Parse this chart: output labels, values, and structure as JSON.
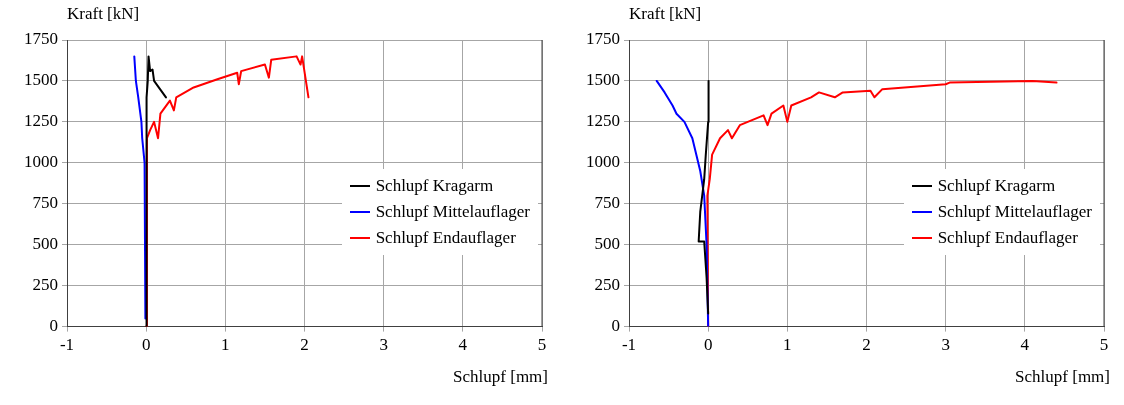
{
  "chart_data": [
    {
      "type": "line",
      "xlabel": "Schlupf [mm]",
      "ylabel": "Kraft [kN]",
      "xlim": [
        -1,
        5
      ],
      "ylim": [
        0,
        1750
      ],
      "xticks": [
        -1,
        0,
        1,
        2,
        3,
        4,
        5
      ],
      "yticks": [
        0,
        250,
        500,
        750,
        1000,
        1250,
        1500,
        1750
      ],
      "grid": true,
      "legend": "right",
      "marker": "none",
      "line_style": "solid",
      "series": [
        {
          "name": "Schlupf Kragarm",
          "color": "#000000",
          "x": [
            0,
            0.005,
            0.02,
            0.03,
            0.05,
            0.08,
            0.1,
            0.25
          ],
          "values": [
            0,
            1400,
            1500,
            1650,
            1560,
            1570,
            1500,
            1400
          ]
        },
        {
          "name": "Schlupf Mittelauflager",
          "color": "#0000ff",
          "x": [
            -0.01,
            -0.02,
            -0.05,
            -0.06,
            -0.1,
            -0.13,
            -0.15
          ],
          "values": [
            50,
            1000,
            1150,
            1250,
            1400,
            1500,
            1650
          ]
        },
        {
          "name": "Schlupf Endauflager",
          "color": "#ff0000",
          "x": [
            0,
            0.01,
            0.05,
            0.1,
            0.15,
            0.18,
            0.3,
            0.35,
            0.38,
            0.6,
            0.9,
            1.15,
            1.17,
            1.2,
            1.5,
            1.55,
            1.58,
            1.9,
            1.95,
            1.97,
            2.05
          ],
          "values": [
            0,
            1150,
            1200,
            1250,
            1150,
            1300,
            1380,
            1320,
            1400,
            1460,
            1510,
            1550,
            1480,
            1560,
            1600,
            1520,
            1630,
            1650,
            1600,
            1650,
            1400
          ]
        }
      ]
    },
    {
      "type": "line",
      "xlabel": "Schlupf [mm]",
      "ylabel": "Kraft [kN]",
      "xlim": [
        -1,
        5
      ],
      "ylim": [
        0,
        1750
      ],
      "xticks": [
        -1,
        0,
        1,
        2,
        3,
        4,
        5
      ],
      "yticks": [
        0,
        250,
        500,
        750,
        1000,
        1250,
        1500,
        1750
      ],
      "grid": true,
      "legend": "right",
      "marker": "none",
      "line_style": "solid",
      "series": [
        {
          "name": "Schlupf Kragarm",
          "color": "#000000",
          "x": [
            0,
            -0.02,
            -0.05,
            -0.12,
            -0.1,
            -0.05,
            -0.03,
            0,
            0.005
          ],
          "values": [
            80,
            300,
            520,
            520,
            700,
            900,
            1050,
            1250,
            1500
          ]
        },
        {
          "name": "Schlupf Mittelauflager",
          "color": "#0000ff",
          "x": [
            0,
            -0.02,
            -0.05,
            -0.1,
            -0.2,
            -0.3,
            -0.4,
            -0.45,
            -0.55,
            -0.65
          ],
          "values": [
            0,
            500,
            800,
            950,
            1150,
            1250,
            1300,
            1350,
            1430,
            1500
          ]
        },
        {
          "name": "Schlupf Endauflager",
          "color": "#ff0000",
          "x": [
            0,
            -0.01,
            0.02,
            0.05,
            0.15,
            0.25,
            0.3,
            0.4,
            0.7,
            0.75,
            0.8,
            0.95,
            1.0,
            1.05,
            1.3,
            1.4,
            1.6,
            1.7,
            2.05,
            2.1,
            2.2,
            3.0,
            3.05,
            4.1,
            4.4
          ],
          "values": [
            0,
            800,
            900,
            1050,
            1150,
            1200,
            1150,
            1230,
            1290,
            1230,
            1300,
            1350,
            1250,
            1350,
            1400,
            1430,
            1400,
            1430,
            1440,
            1400,
            1450,
            1480,
            1490,
            1500,
            1490
          ]
        }
      ]
    }
  ]
}
